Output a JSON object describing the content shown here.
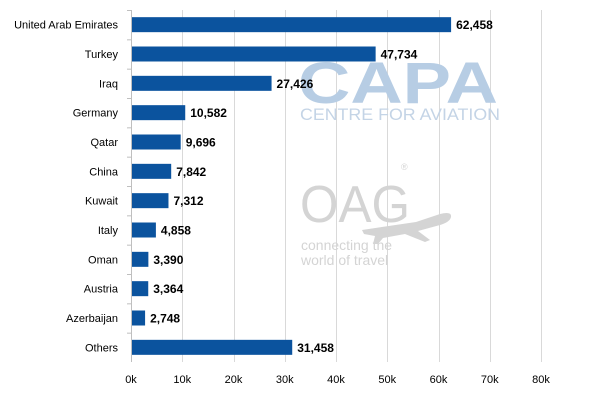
{
  "chart_data": {
    "type": "bar",
    "orientation": "horizontal",
    "title": "",
    "xlabel": "",
    "ylabel": "",
    "categories": [
      "United Arab Emirates",
      "Turkey",
      "Iraq",
      "Germany",
      "Qatar",
      "China",
      "Kuwait",
      "Italy",
      "Oman",
      "Austria",
      "Azerbaijan",
      "Others"
    ],
    "values": [
      62458,
      47734,
      27426,
      10582,
      9696,
      7842,
      7312,
      4858,
      3390,
      3364,
      2748,
      31458
    ],
    "value_labels": [
      "62,458",
      "47,734",
      "27,426",
      "10,582",
      "9,696",
      "7,842",
      "7,312",
      "4,858",
      "3,390",
      "3,364",
      "2,748",
      "31,458"
    ],
    "xlim": [
      0,
      80000
    ],
    "x_ticks": [
      0,
      10000,
      20000,
      30000,
      40000,
      50000,
      60000,
      70000,
      80000
    ],
    "x_tick_labels": [
      "0k",
      "10k",
      "20k",
      "30k",
      "40k",
      "50k",
      "60k",
      "70k",
      "80k"
    ],
    "grid": "vertical",
    "legend": "none",
    "colors": {
      "bar": "#0b539e",
      "grid": "#d9d9d9",
      "axis": "#bfbfbf"
    }
  },
  "watermarks": {
    "capa_logo": "CAPA",
    "capa_subtitle": "CENTRE FOR AVIATION",
    "oag_logo": "OAG",
    "oag_tagline_line1": "connecting the",
    "oag_tagline_line2": "world of travel",
    "oag_icon": "airplane-icon"
  }
}
